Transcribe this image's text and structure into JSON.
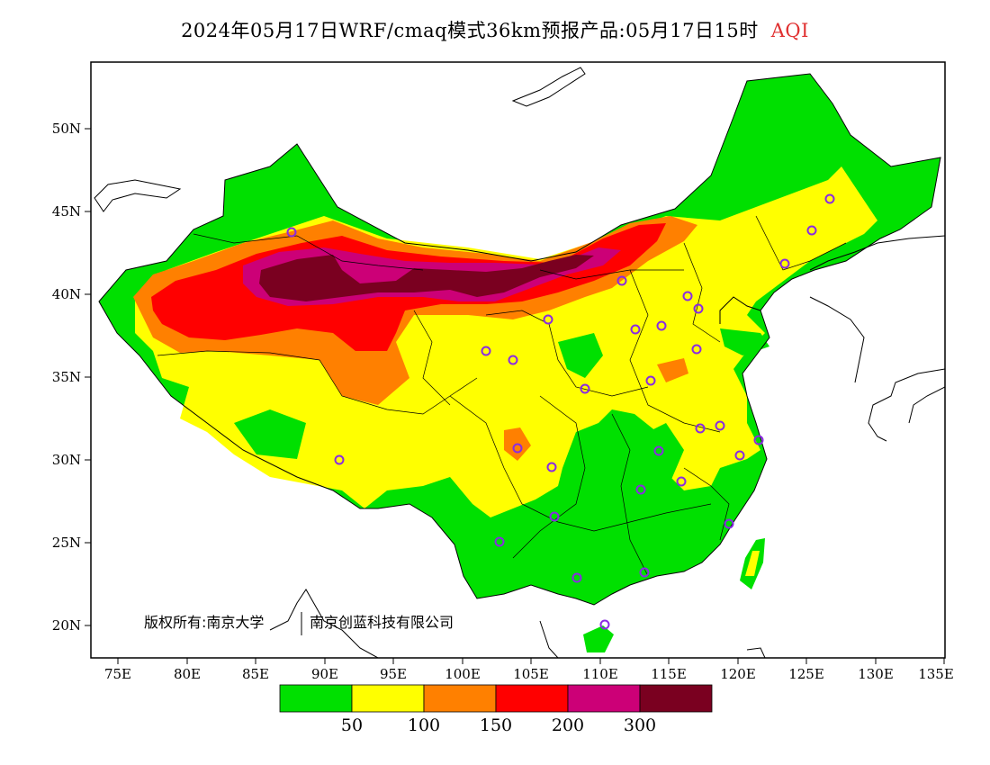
{
  "title": {
    "main": "2024年05月17日WRF/cmaq模式36km预报产品:05月17日15时",
    "variable": "AQI"
  },
  "axes": {
    "lat_labels": [
      "50N",
      "45N",
      "40N",
      "35N",
      "30N",
      "25N",
      "20N"
    ],
    "lon_labels": [
      "75E",
      "80E",
      "85E",
      "90E",
      "95E",
      "100E",
      "105E",
      "110E",
      "115E",
      "120E",
      "125E",
      "130E",
      "135E"
    ]
  },
  "credit": {
    "part1": "版权所有:南京大学",
    "part2": "南京创蓝科技有限公司"
  },
  "legend": {
    "colors": [
      "#00e000",
      "#ffff00",
      "#ff8000",
      "#ff0000",
      "#cc0077",
      "#7a0020"
    ],
    "labels": [
      "50",
      "100",
      "150",
      "200",
      "300"
    ]
  },
  "colors": {
    "green": "#00e000",
    "yellow": "#ffff00",
    "orange": "#ff8000",
    "red": "#ff0000",
    "magenta": "#cc0077",
    "maroon": "#7a0020",
    "station": "#8a2be2"
  }
}
